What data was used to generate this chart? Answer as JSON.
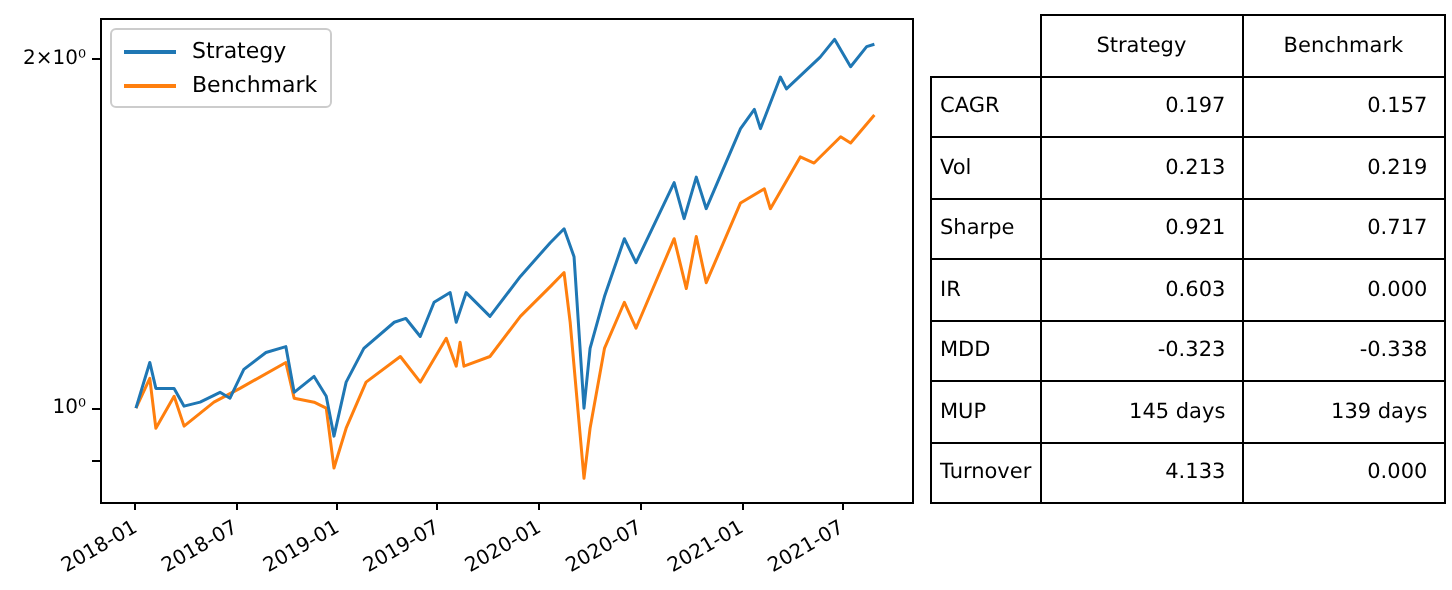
{
  "chart_data": [
    {
      "type": "line",
      "legend": "top left",
      "log": "y",
      "xlim": [
        "2017-10-28",
        "2021-11-04"
      ],
      "xticks": [
        "2018-01",
        "2018-07",
        "2019-01",
        "2019-07",
        "2020-01",
        "2020-07",
        "2021-01",
        "2021-07"
      ],
      "ylim": [
        0.83,
        2.17
      ],
      "yticks": [
        {
          "value": 0.9,
          "label": null
        },
        {
          "value": 1,
          "label": "10⁰"
        },
        {
          "value": 2,
          "label": "2×10⁰"
        }
      ],
      "series": [
        {
          "name": "Strategy",
          "color": "#1f77b4",
          "x": [
            "2018-01-01",
            "2018-01-26",
            "2018-02-06",
            "2018-03-11",
            "2018-03-29",
            "2018-04-27",
            "2018-06-02",
            "2018-06-20",
            "2018-07-15",
            "2018-08-24",
            "2018-09-29",
            "2018-10-14",
            "2018-11-19",
            "2018-12-11",
            "2018-12-25",
            "2019-01-16",
            "2019-02-17",
            "2019-04-13",
            "2019-05-04",
            "2019-05-30",
            "2019-06-24",
            "2019-07-23",
            "2019-08-03",
            "2019-08-21",
            "2019-10-03",
            "2019-11-27",
            "2020-01-20",
            "2020-02-14",
            "2020-03-03",
            "2020-03-21",
            "2020-04-01",
            "2020-04-27",
            "2020-06-02",
            "2020-06-23",
            "2020-08-31",
            "2020-09-18",
            "2020-10-10",
            "2020-10-28",
            "2020-12-29",
            "2021-01-23",
            "2021-02-03",
            "2021-03-11",
            "2021-03-22",
            "2021-05-22",
            "2021-06-17",
            "2021-07-16",
            "2021-08-14",
            "2021-08-28"
          ],
          "values": [
            1.0,
            1.095,
            1.04,
            1.04,
            1.004,
            1.012,
            1.032,
            1.02,
            1.08,
            1.117,
            1.13,
            1.032,
            1.065,
            1.024,
            0.946,
            1.053,
            1.126,
            1.186,
            1.195,
            1.153,
            1.234,
            1.258,
            1.186,
            1.258,
            1.2,
            1.299,
            1.389,
            1.428,
            1.351,
            1.0,
            1.126,
            1.248,
            1.4,
            1.335,
            1.565,
            1.457,
            1.582,
            1.486,
            1.742,
            1.81,
            1.742,
            1.93,
            1.885,
            2.008,
            2.08,
            1.97,
            2.05,
            2.06
          ]
        },
        {
          "name": "Benchmark",
          "color": "#ff7f0e",
          "x": [
            "2018-01-01",
            "2018-01-26",
            "2018-02-06",
            "2018-03-11",
            "2018-03-29",
            "2018-05-22",
            "2018-07-08",
            "2018-09-29",
            "2018-10-14",
            "2018-11-19",
            "2018-12-11",
            "2018-12-25",
            "2019-01-16",
            "2019-02-21",
            "2019-04-24",
            "2019-05-30",
            "2019-07-16",
            "2019-08-03",
            "2019-08-10",
            "2019-08-17",
            "2019-10-03",
            "2019-11-27",
            "2020-01-20",
            "2020-02-14",
            "2020-02-25",
            "2020-03-21",
            "2020-04-01",
            "2020-04-27",
            "2020-06-02",
            "2020-06-23",
            "2020-08-31",
            "2020-09-22",
            "2020-10-10",
            "2020-10-28",
            "2020-12-29",
            "2021-02-10",
            "2021-02-21",
            "2021-04-16",
            "2021-05-11",
            "2021-06-28",
            "2021-07-16",
            "2021-08-28"
          ],
          "values": [
            1.0,
            1.061,
            0.961,
            1.024,
            0.965,
            1.012,
            1.04,
            1.095,
            1.02,
            1.012,
            1.0,
            0.888,
            0.961,
            1.053,
            1.108,
            1.053,
            1.149,
            1.087,
            1.14,
            1.087,
            1.108,
            1.2,
            1.273,
            1.309,
            1.186,
            0.87,
            0.961,
            1.126,
            1.234,
            1.172,
            1.4,
            1.268,
            1.406,
            1.283,
            1.503,
            1.546,
            1.486,
            1.647,
            1.627,
            1.714,
            1.693,
            1.79
          ]
        }
      ]
    },
    {
      "type": "other",
      "categories": [
        "CAGR",
        "Vol",
        "Sharpe",
        "IR",
        "MDD",
        "MUP",
        "Turnover"
      ],
      "series": [
        {
          "name": "Strategy",
          "values": [
            0.197,
            0.213,
            0.921,
            0.603,
            -0.323,
            145,
            4.133
          ],
          "value_labels": [
            "0.197",
            "0.213",
            "0.921",
            "0.603",
            "-0.323",
            "145 days",
            "4.133"
          ]
        },
        {
          "name": "Benchmark",
          "values": [
            0.157,
            0.219,
            0.717,
            0.0,
            -0.338,
            139,
            0.0
          ],
          "value_labels": [
            "0.157",
            "0.219",
            "0.717",
            "0.000",
            "-0.338",
            "139 days",
            "0.000"
          ]
        }
      ]
    }
  ]
}
